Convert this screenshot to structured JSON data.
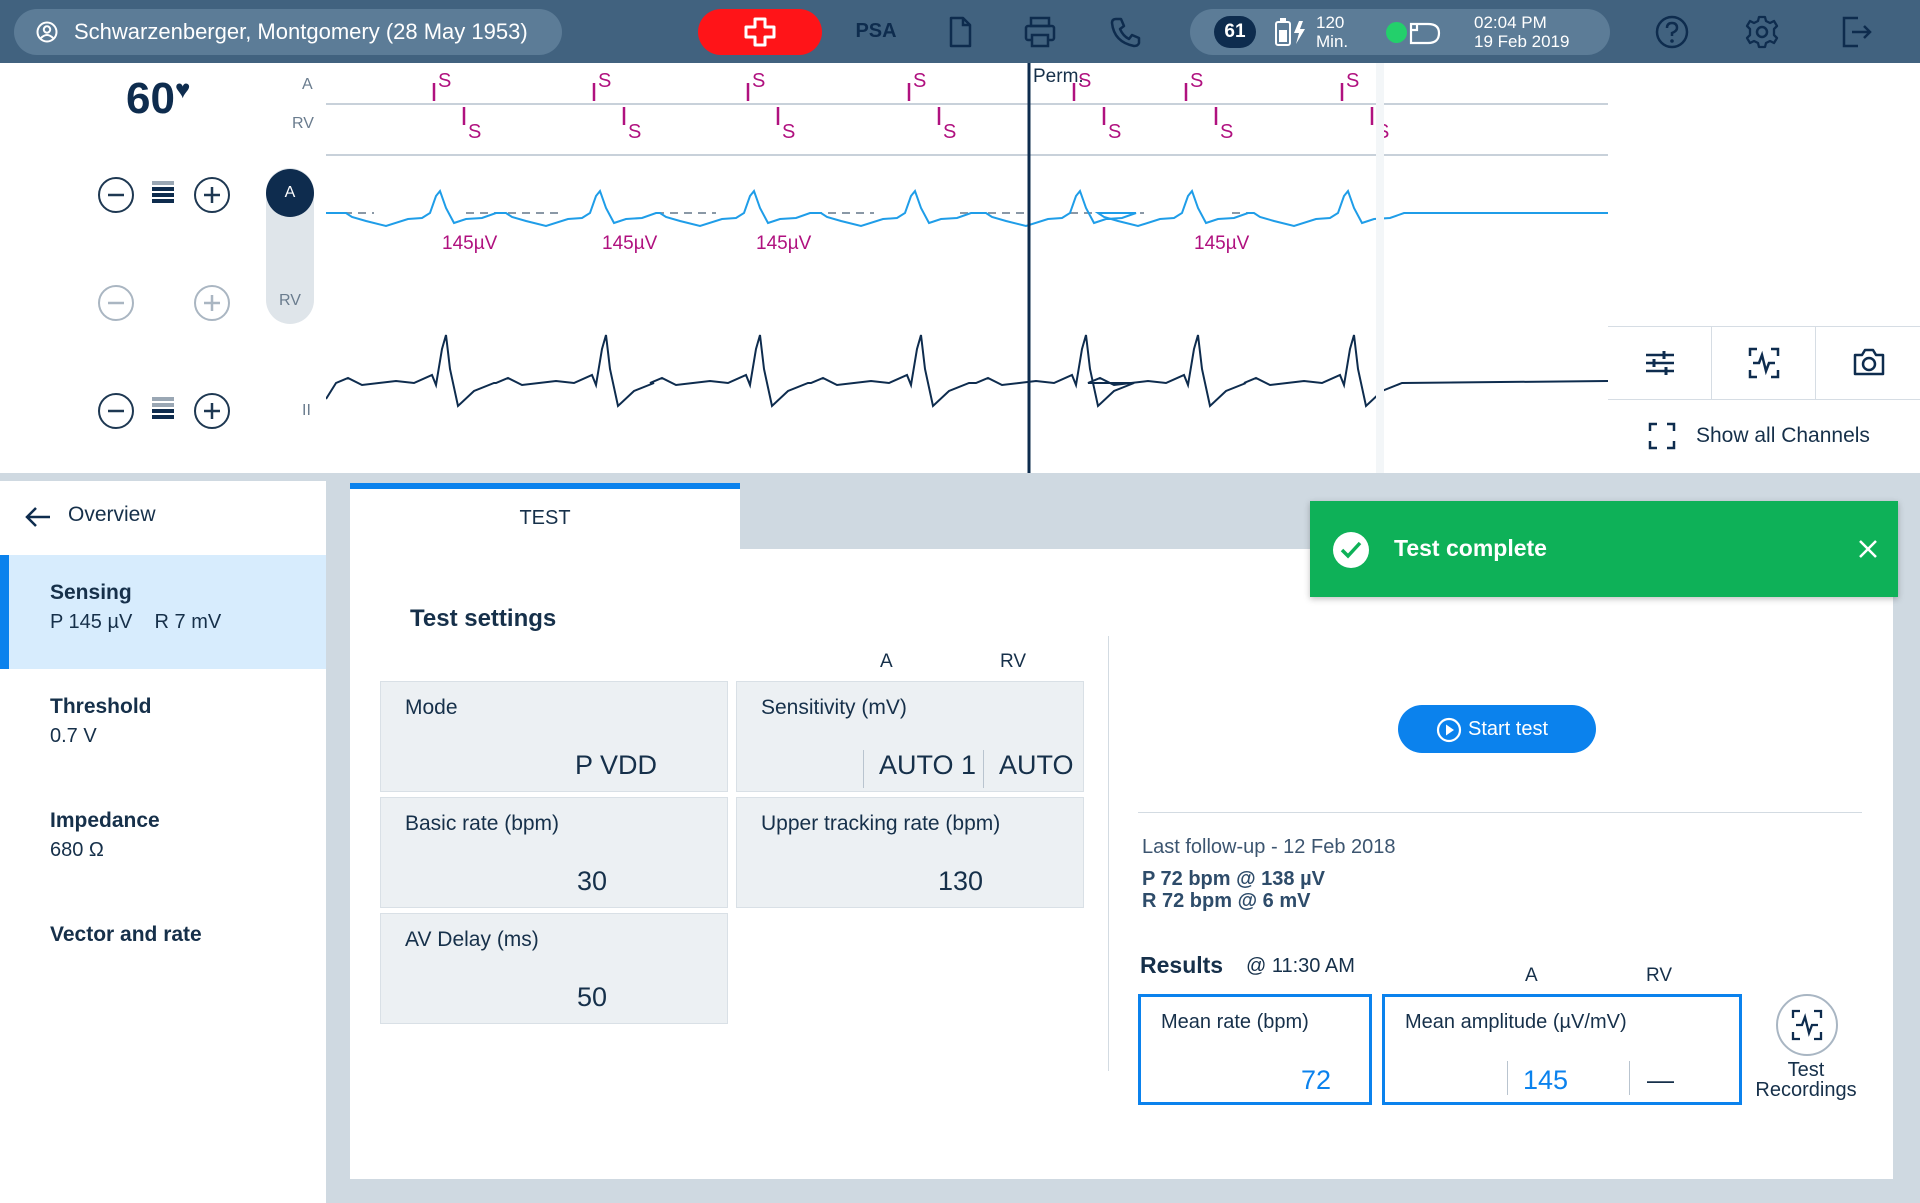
{
  "header": {
    "patient_name": "Schwarzenberger, Montgomery (28 May 1953)",
    "psa_label": "PSA",
    "counter": "61",
    "battery_value": "120",
    "battery_unit": "Min.",
    "time": "02:04 PM",
    "date": "19 Feb 2019",
    "accent_color": "#41627f",
    "emergency_color": "#ff1418"
  },
  "ecg": {
    "heart_rate": "60",
    "heart_symbol": "♥",
    "channel_labels": {
      "a": "A",
      "rv": "RV",
      "lead": "II"
    },
    "toggle": {
      "selected": "A",
      "other": "RV"
    },
    "marker_s": "S",
    "perm_label": "Perm.",
    "amplitude_label": "145µV",
    "trace_colors": {
      "marker": "#b0117f",
      "atrial": "#1f9de8",
      "surface": "#0e2c4e"
    }
  },
  "tools": {
    "show_all_label": "Show all Channels"
  },
  "sidebar": {
    "back_label": "Overview",
    "items": [
      {
        "title": "Sensing",
        "value": "P 145 µV    R 7 mV",
        "active": true
      },
      {
        "title": "Threshold",
        "value": "0.7 V"
      },
      {
        "title": "Impedance",
        "value": "680 Ω"
      },
      {
        "title": "Vector and rate",
        "value": ""
      }
    ]
  },
  "tab": {
    "label": "TEST"
  },
  "settings": {
    "title": "Test settings",
    "col_a": "A",
    "col_rv": "RV",
    "mode": {
      "label": "Mode",
      "value": "P VDD"
    },
    "sensitivity": {
      "label": "Sensitivity (mV)",
      "a": "AUTO 1",
      "rv": "AUTO"
    },
    "basic_rate": {
      "label": "Basic rate (bpm)",
      "value": "30"
    },
    "upper_rate": {
      "label": "Upper tracking rate (bpm)",
      "value": "130"
    },
    "av_delay": {
      "label": "AV Delay (ms)",
      "value": "50"
    }
  },
  "test": {
    "start_label": "Start test",
    "followup_title": "Last follow-up - 12 Feb 2018",
    "followup_p": "P 72 bpm @ 138 µV",
    "followup_r": "R 72 bpm @ 6 mV",
    "results_title": "Results",
    "results_time": "@ 11:30 AM",
    "col_a": "A",
    "col_rv": "RV",
    "mean_rate_label": "Mean rate (bpm)",
    "mean_rate_value": "72",
    "mean_amp_label": "Mean amplitude (µV/mV)",
    "mean_amp_a": "145",
    "mean_amp_rv": "—",
    "recordings_label_1": "Test",
    "recordings_label_2": "Recordings"
  },
  "toast": {
    "message": "Test complete",
    "color": "#0eb158"
  }
}
